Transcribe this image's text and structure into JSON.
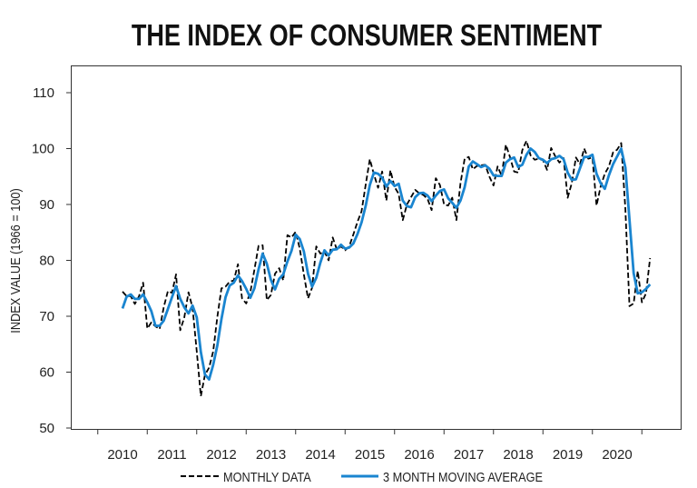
{
  "chart_data": {
    "type": "line",
    "title": "THE INDEX OF CONSUMER SENTIMENT",
    "xlabel": "",
    "ylabel": "INDEX VALUE (1966 = 100)",
    "ylim": [
      50,
      110
    ],
    "yticks": [
      "50",
      "60",
      "70",
      "80",
      "90",
      "100",
      "110"
    ],
    "xticks": [
      "2010",
      "2011",
      "2012",
      "2013",
      "2014",
      "2015",
      "2016",
      "2017",
      "2018",
      "2019",
      "2020"
    ],
    "x_start": "2010-01",
    "x_frequency": "monthly",
    "grid": false,
    "legend_position": "bottom",
    "series": [
      {
        "name": "MONTHLY DATA",
        "color": "#000000",
        "style": "dashed",
        "values": [
          74.4,
          73.6,
          73.6,
          72.2,
          73.6,
          76.0,
          67.8,
          68.9,
          68.2,
          67.7,
          71.6,
          74.5,
          74.2,
          77.5,
          67.5,
          69.8,
          74.3,
          71.5,
          63.7,
          55.7,
          59.5,
          60.8,
          63.7,
          69.9,
          75.0,
          75.3,
          76.2,
          76.4,
          79.3,
          73.2,
          72.3,
          74.3,
          78.3,
          82.6,
          82.7,
          72.9,
          73.8,
          77.6,
          78.6,
          76.4,
          84.5,
          84.1,
          85.1,
          82.1,
          77.5,
          73.2,
          75.1,
          82.5,
          81.2,
          81.6,
          80.0,
          84.1,
          81.9,
          82.5,
          81.8,
          82.5,
          84.6,
          86.9,
          88.8,
          93.6,
          98.1,
          95.4,
          93.0,
          95.9,
          90.7,
          96.1,
          93.1,
          91.9,
          87.2,
          90.0,
          91.3,
          92.6,
          92.0,
          91.7,
          91.0,
          89.0,
          94.7,
          93.5,
          90.0,
          89.8,
          91.2,
          87.2,
          93.8,
          98.2,
          98.5,
          96.3,
          96.9,
          97.0,
          97.1,
          95.0,
          93.4,
          96.8,
          95.1,
          100.7,
          98.5,
          95.9,
          95.7,
          99.7,
          101.4,
          98.8,
          98.0,
          98.2,
          97.9,
          96.2,
          100.1,
          98.6,
          97.5,
          98.3,
          91.2,
          93.8,
          98.4,
          97.2,
          100.0,
          98.2,
          98.4,
          89.8,
          93.2,
          95.5,
          96.8,
          99.3,
          99.8,
          101.0,
          89.1,
          71.8,
          72.3,
          78.1,
          72.5,
          74.1,
          80.4
        ]
      },
      {
        "name": "3 MONTH MOVING AVERAGE",
        "color": "#1a85d0",
        "style": "solid",
        "values": [
          71.4,
          73.5,
          73.9,
          73.1,
          73.1,
          73.9,
          72.5,
          70.9,
          68.3,
          68.3,
          69.2,
          71.3,
          73.4,
          75.4,
          73.1,
          71.6,
          70.5,
          71.9,
          69.8,
          63.6,
          59.6,
          58.7,
          61.3,
          64.8,
          69.5,
          73.4,
          75.5,
          76.0,
          77.3,
          76.3,
          74.9,
          73.3,
          75.0,
          78.4,
          81.2,
          79.4,
          76.5,
          74.8,
          76.7,
          77.5,
          79.8,
          81.7,
          84.6,
          83.8,
          81.6,
          77.6,
          75.3,
          76.9,
          79.6,
          81.8,
          80.9,
          81.9,
          82.0,
          82.8,
          82.1,
          82.3,
          83.0,
          84.7,
          86.8,
          89.8,
          93.5,
          95.7,
          95.5,
          94.8,
          93.2,
          94.2,
          93.3,
          93.7,
          90.7,
          89.7,
          89.5,
          91.3,
          92.0,
          92.1,
          91.6,
          90.6,
          91.6,
          92.4,
          92.7,
          91.1,
          90.3,
          89.4,
          90.7,
          93.1,
          96.8,
          97.7,
          97.2,
          96.7,
          97.0,
          96.4,
          95.2,
          95.1,
          95.1,
          97.5,
          98.1,
          98.4,
          96.7,
          97.1,
          98.9,
          100.0,
          99.4,
          98.3,
          98.0,
          97.4,
          98.1,
          98.3,
          98.7,
          98.1,
          95.7,
          94.4,
          94.5,
          96.5,
          98.5,
          98.5,
          98.9,
          95.5,
          93.8,
          92.8,
          95.2,
          97.2,
          98.6,
          100.0,
          96.6,
          87.3,
          77.7,
          74.1,
          74.3,
          74.9,
          75.7
        ]
      }
    ]
  }
}
